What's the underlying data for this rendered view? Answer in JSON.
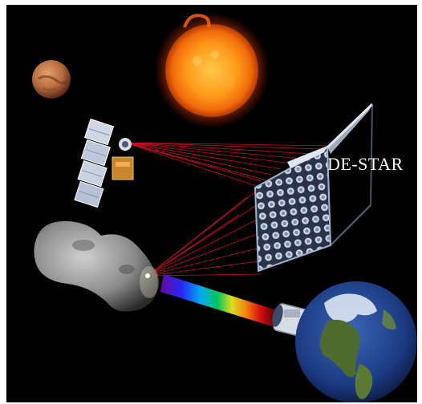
{
  "illustration": {
    "label": "DE-STAR",
    "colors": {
      "background": "#000000",
      "laser": "#e0142a",
      "sun_core": "#ff9a1a",
      "sun_edge": "#d84a06",
      "mars": "#c0784a",
      "earth_ocean": "#1f3f8a",
      "earth_land": "#4d6b2e",
      "array_frame": "#8fa6c8",
      "label": "#ffffff"
    },
    "objects": [
      "sun",
      "mars",
      "satellite",
      "asteroid",
      "de-star-array",
      "laser-beams",
      "spectrum-beam",
      "telescope",
      "earth"
    ]
  }
}
